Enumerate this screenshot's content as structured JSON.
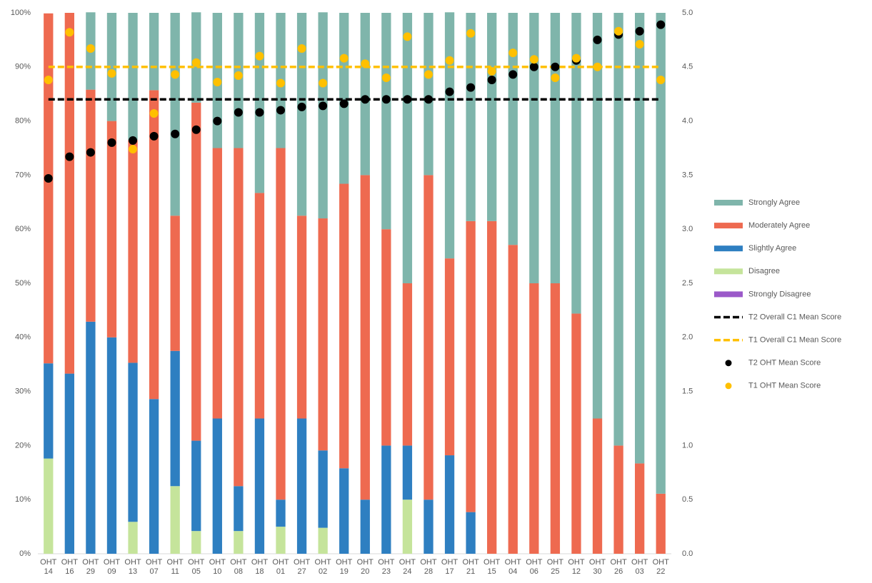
{
  "chart_data": {
    "type": "stacked_bar_combo",
    "categories": [
      "OHT 14",
      "OHT 16",
      "OHT 29",
      "OHT 09",
      "OHT 13",
      "OHT 07",
      "OHT 11",
      "OHT 05",
      "OHT 10",
      "OHT 08",
      "OHT 18",
      "OHT 01",
      "OHT 27",
      "OHT 02",
      "OHT 19",
      "OHT 20",
      "OHT 23",
      "OHT 24",
      "OHT 28",
      "OHT 17",
      "OHT 21",
      "OHT 15",
      "OHT 04",
      "OHT 06",
      "OHT 25",
      "OHT 12",
      "OHT 30",
      "OHT 26",
      "OHT 03",
      "OHT 22"
    ],
    "ylim": [
      0,
      100
    ],
    "yticks": [
      {
        "value": 0,
        "label": "0%"
      },
      {
        "value": 10,
        "label": "10%"
      },
      {
        "value": 20,
        "label": "20%"
      },
      {
        "value": 30,
        "label": "30%"
      },
      {
        "value": 40,
        "label": "40%"
      },
      {
        "value": 50,
        "label": "50%"
      },
      {
        "value": 60,
        "label": "60%"
      },
      {
        "value": 70,
        "label": "70%"
      },
      {
        "value": 80,
        "label": "80%"
      },
      {
        "value": 90,
        "label": "90%"
      },
      {
        "value": 100,
        "label": "100%"
      }
    ],
    "y2lim": [
      0,
      5
    ],
    "y2ticks": [
      {
        "value": 0,
        "label": "0.0"
      },
      {
        "value": 0.5,
        "label": "0.5"
      },
      {
        "value": 1,
        "label": "1.0"
      },
      {
        "value": 1.5,
        "label": "1.5"
      },
      {
        "value": 2,
        "label": "2.0"
      },
      {
        "value": 2.5,
        "label": "2.5"
      },
      {
        "value": 3,
        "label": "3.0"
      },
      {
        "value": 3.5,
        "label": "3.5"
      },
      {
        "value": 4,
        "label": "4.0"
      },
      {
        "value": 4.5,
        "label": "4.5"
      },
      {
        "value": 5,
        "label": "5.0"
      }
    ],
    "legend": "right",
    "series": [
      {
        "name": "Strongly Agree",
        "kind": "bar",
        "color": "#7fb5ab",
        "values": [
          0,
          0,
          14.3,
          20,
          23.5,
          14.3,
          37.5,
          16.7,
          25,
          25,
          33.3,
          25,
          37.5,
          38.1,
          31.6,
          30,
          40,
          50,
          30,
          45.5,
          38.5,
          38.5,
          42.9,
          50,
          50,
          55.6,
          75,
          80,
          83.3,
          88.9
        ]
      },
      {
        "name": "Moderately Agree",
        "kind": "bar",
        "color": "#ee6a50",
        "values": [
          64.7,
          66.7,
          42.9,
          40,
          41.2,
          57.1,
          25,
          62.5,
          50,
          62.5,
          41.7,
          65,
          37.5,
          42.9,
          52.6,
          60,
          40,
          30,
          60,
          36.4,
          53.8,
          61.5,
          57.1,
          50,
          50,
          44.4,
          25,
          20,
          16.7,
          11.1
        ]
      },
      {
        "name": "Slightly Agree",
        "kind": "bar",
        "color": "#2e7fc1",
        "values": [
          17.6,
          33.3,
          42.9,
          40,
          29.4,
          28.6,
          25,
          16.7,
          25,
          8.3,
          25,
          5,
          25,
          14.3,
          15.8,
          10,
          20,
          10,
          10,
          18.2,
          7.7,
          0,
          0,
          0,
          0,
          0,
          0,
          0,
          0,
          0
        ]
      },
      {
        "name": "Disagree",
        "kind": "bar",
        "color": "#c5e49b",
        "values": [
          17.6,
          0,
          0,
          0,
          5.9,
          0,
          12.5,
          4.2,
          0,
          4.2,
          0,
          5,
          0,
          4.8,
          0,
          0,
          0,
          10,
          0,
          0,
          0,
          0,
          0,
          0,
          0,
          0,
          0,
          0,
          0,
          0
        ]
      },
      {
        "name": "Strongly Disagree",
        "kind": "bar",
        "color": "#9b59c9",
        "values": [
          0,
          0,
          0,
          0,
          0,
          0,
          0,
          0,
          0,
          0,
          0,
          0,
          0,
          0,
          0,
          0,
          0,
          0,
          0,
          0,
          0,
          0,
          0,
          0,
          0,
          0,
          0,
          0,
          0,
          0
        ]
      },
      {
        "name": "T2 Overall C1 Mean Score",
        "kind": "hline",
        "axis": "y2",
        "color": "#000000",
        "value": 4.2
      },
      {
        "name": "T1 Overall C1 Mean Score",
        "kind": "hline",
        "axis": "y2",
        "color": "#ffc000",
        "value": 4.5
      },
      {
        "name": "T2 OHT Mean Score",
        "kind": "scatter",
        "axis": "y2",
        "color": "#000000",
        "values": [
          3.47,
          3.67,
          3.71,
          3.8,
          3.82,
          3.86,
          3.88,
          3.92,
          4.0,
          4.08,
          4.08,
          4.1,
          4.13,
          4.14,
          4.16,
          4.2,
          4.2,
          4.2,
          4.2,
          4.27,
          4.31,
          4.38,
          4.43,
          4.5,
          4.5,
          4.56,
          4.75,
          4.8,
          4.83,
          4.89
        ]
      },
      {
        "name": "T1 OHT Mean Score",
        "kind": "scatter",
        "axis": "y2",
        "color": "#ffc000",
        "values": [
          4.38,
          4.82,
          4.67,
          4.44,
          3.74,
          4.07,
          4.43,
          4.54,
          4.36,
          4.42,
          4.6,
          4.35,
          4.67,
          4.35,
          4.58,
          4.53,
          4.4,
          4.78,
          4.43,
          4.56,
          4.81,
          4.46,
          4.63,
          4.57,
          4.4,
          4.58,
          4.5,
          4.83,
          4.71,
          4.38
        ]
      }
    ]
  }
}
